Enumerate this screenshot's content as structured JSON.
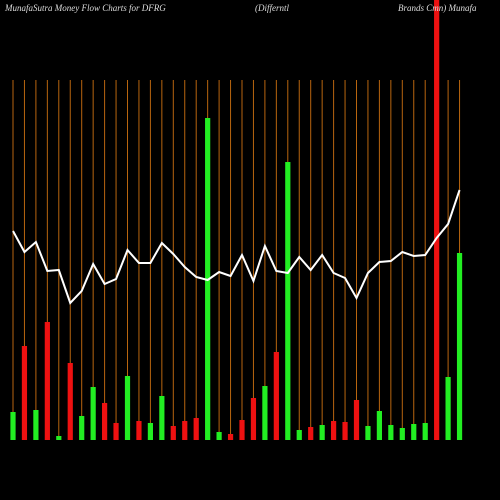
{
  "chart_data": {
    "type": "bar",
    "title_parts": [
      "MunafaSutra  Money Flow  Charts for DFRG",
      "(Differntl",
      "Brands Cmn) Munafa"
    ],
    "categories": [
      null,
      null,
      null,
      null,
      null,
      null,
      null,
      null,
      null,
      null,
      null,
      null,
      null,
      null,
      null,
      null,
      null,
      null,
      null,
      null,
      null,
      null,
      null,
      null,
      null,
      null,
      null,
      null,
      null,
      null,
      null,
      null,
      null,
      null,
      null,
      null,
      null,
      null,
      null,
      null
    ],
    "ylim": [
      0,
      440
    ],
    "grid": true,
    "grid_color": "#b8650f",
    "series": [
      {
        "type": "bar",
        "values": [
          28,
          94,
          30,
          118,
          4,
          77,
          24,
          53,
          37,
          17,
          64,
          19,
          17,
          44,
          14,
          19,
          22,
          322,
          8,
          6,
          20,
          42,
          54,
          88,
          278,
          10,
          13,
          15,
          19,
          18,
          40,
          14,
          29,
          15,
          12,
          16,
          17,
          440,
          63,
          187
        ],
        "colors": [
          "#22ee22",
          "#ee1111",
          "#22ee22",
          "#ee1111",
          "#22ee22",
          "#ee1111",
          "#22ee22",
          "#22ee22",
          "#ee1111",
          "#ee1111",
          "#22ee22",
          "#ee1111",
          "#22ee22",
          "#22ee22",
          "#ee1111",
          "#ee1111",
          "#ee1111",
          "#22ee22",
          "#22ee22",
          "#ee1111",
          "#ee1111",
          "#ee1111",
          "#22ee22",
          "#ee1111",
          "#22ee22",
          "#22ee22",
          "#ee1111",
          "#22ee22",
          "#ee1111",
          "#ee1111",
          "#ee1111",
          "#22ee22",
          "#22ee22",
          "#22ee22",
          "#22ee22",
          "#22ee22",
          "#22ee22",
          "#ee1111",
          "#22ee22",
          "#22ee22"
        ]
      },
      {
        "type": "line",
        "color": "#ffffff",
        "values": [
          209,
          188,
          198,
          169,
          170,
          137,
          149,
          176,
          156,
          161,
          190,
          177,
          177,
          197,
          186,
          173,
          163,
          160,
          168,
          164,
          185,
          159,
          194,
          169,
          167,
          183,
          170,
          185,
          167,
          162,
          142,
          167,
          178,
          179,
          188,
          184,
          185,
          202,
          216,
          250
        ]
      }
    ]
  }
}
